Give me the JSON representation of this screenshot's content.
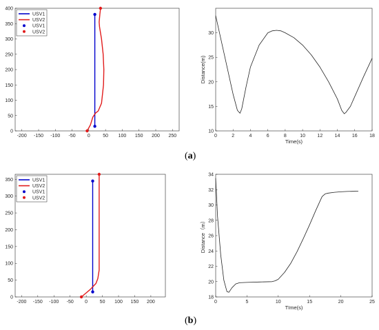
{
  "captions": {
    "a": "a",
    "b": "b"
  },
  "chart_data": [
    {
      "id": "a_traj",
      "type": "line",
      "xlim": [
        -220,
        270
      ],
      "ylim": [
        0,
        400
      ],
      "xticks": [
        -200,
        -150,
        -100,
        -50,
        0,
        50,
        100,
        150,
        200,
        250
      ],
      "yticks": [
        0,
        50,
        100,
        150,
        200,
        250,
        300,
        350,
        400
      ],
      "legend_position": "top-left",
      "legend": [
        "USV1",
        "USV2",
        "USV1",
        "USV2"
      ],
      "series": [
        {
          "name": "USV1",
          "color": "#0000cc",
          "kind": "line",
          "x": [
            18,
            18
          ],
          "y": [
            15,
            380
          ]
        },
        {
          "name": "USV2",
          "color": "#e11b1b",
          "kind": "line",
          "x": [
            -5,
            5,
            12,
            20,
            28,
            38,
            44,
            45,
            43,
            38,
            32,
            31,
            33,
            35
          ],
          "y": [
            0,
            20,
            45,
            58,
            65,
            90,
            150,
            200,
            250,
            300,
            340,
            355,
            380,
            400
          ]
        },
        {
          "name": "USV1",
          "color": "#0000cc",
          "kind": "points",
          "x": [
            18,
            18
          ],
          "y": [
            15,
            380
          ]
        },
        {
          "name": "USV2",
          "color": "#e11b1b",
          "kind": "points",
          "x": [
            -5,
            35
          ],
          "y": [
            0,
            400
          ]
        }
      ]
    },
    {
      "id": "a_dist",
      "type": "line",
      "xlabel": "Time(s)",
      "ylabel": "Distance(m)",
      "xlim": [
        0,
        18
      ],
      "ylim": [
        10,
        35
      ],
      "xticks": [
        0,
        2,
        4,
        6,
        8,
        10,
        12,
        14,
        16,
        18
      ],
      "yticks": [
        10,
        15,
        20,
        25,
        30
      ],
      "series": [
        {
          "color": "#222222",
          "x": [
            0,
            0.5,
            1,
            1.5,
            2,
            2.5,
            2.8,
            3.0,
            3.5,
            4,
            5,
            6,
            6.5,
            7,
            7.5,
            8,
            9,
            10,
            11,
            12,
            13,
            14,
            14.5,
            14.8,
            15,
            15.5,
            16,
            17,
            18
          ],
          "y": [
            33.5,
            29.5,
            25.5,
            21.5,
            17.5,
            14.2,
            13.6,
            14.5,
            19,
            23,
            27.5,
            30,
            30.4,
            30.5,
            30.4,
            30,
            29,
            27.5,
            25.5,
            23,
            20,
            16.5,
            14.2,
            13.5,
            13.8,
            15,
            17,
            21,
            24.8
          ]
        }
      ]
    },
    {
      "id": "b_traj",
      "type": "line",
      "xlim": [
        -220,
        245
      ],
      "ylim": [
        0,
        365
      ],
      "xticks": [
        -200,
        -150,
        -100,
        -50,
        0,
        50,
        100,
        150,
        200
      ],
      "yticks": [
        0,
        50,
        100,
        150,
        200,
        250,
        300,
        350
      ],
      "legend_position": "top-left",
      "legend": [
        "USV1",
        "USV2",
        "USV1",
        "USV2"
      ],
      "series": [
        {
          "name": "USV1",
          "color": "#0000cc",
          "kind": "line",
          "x": [
            20,
            20
          ],
          "y": [
            15,
            345
          ]
        },
        {
          "name": "USV2",
          "color": "#e11b1b",
          "kind": "line",
          "x": [
            -15,
            0,
            12,
            22,
            30,
            36,
            40,
            40,
            40
          ],
          "y": [
            0,
            12,
            22,
            32,
            40,
            55,
            80,
            200,
            365
          ]
        },
        {
          "name": "USV1",
          "color": "#0000cc",
          "kind": "points",
          "x": [
            20,
            20
          ],
          "y": [
            15,
            345
          ]
        },
        {
          "name": "USV2",
          "color": "#e11b1b",
          "kind": "points",
          "x": [
            -15,
            40
          ],
          "y": [
            0,
            365
          ]
        }
      ]
    },
    {
      "id": "b_dist",
      "type": "line",
      "xlabel": "TIme(s)",
      "ylabel": "Distance（m）",
      "xlim": [
        0,
        25
      ],
      "ylim": [
        18,
        34
      ],
      "xticks": [
        0,
        5,
        10,
        15,
        20,
        25
      ],
      "yticks": [
        18,
        20,
        22,
        24,
        26,
        28,
        30,
        32,
        34
      ],
      "series": [
        {
          "color": "#222222",
          "x": [
            0,
            0.3,
            0.8,
            1.3,
            1.8,
            2.1,
            2.6,
            3.2,
            3.8,
            5,
            7,
            9,
            9.5,
            10,
            11,
            12,
            13,
            14,
            15,
            16,
            17,
            17.5,
            18,
            19,
            20,
            21,
            22,
            22.8
          ],
          "y": [
            33.5,
            28.5,
            23.5,
            20.2,
            18.7,
            18.6,
            19.2,
            19.7,
            19.85,
            19.9,
            19.95,
            20.0,
            20.1,
            20.3,
            21.2,
            22.4,
            23.9,
            25.6,
            27.4,
            29.3,
            31.1,
            31.45,
            31.55,
            31.65,
            31.72,
            31.76,
            31.78,
            31.8
          ]
        }
      ]
    }
  ]
}
